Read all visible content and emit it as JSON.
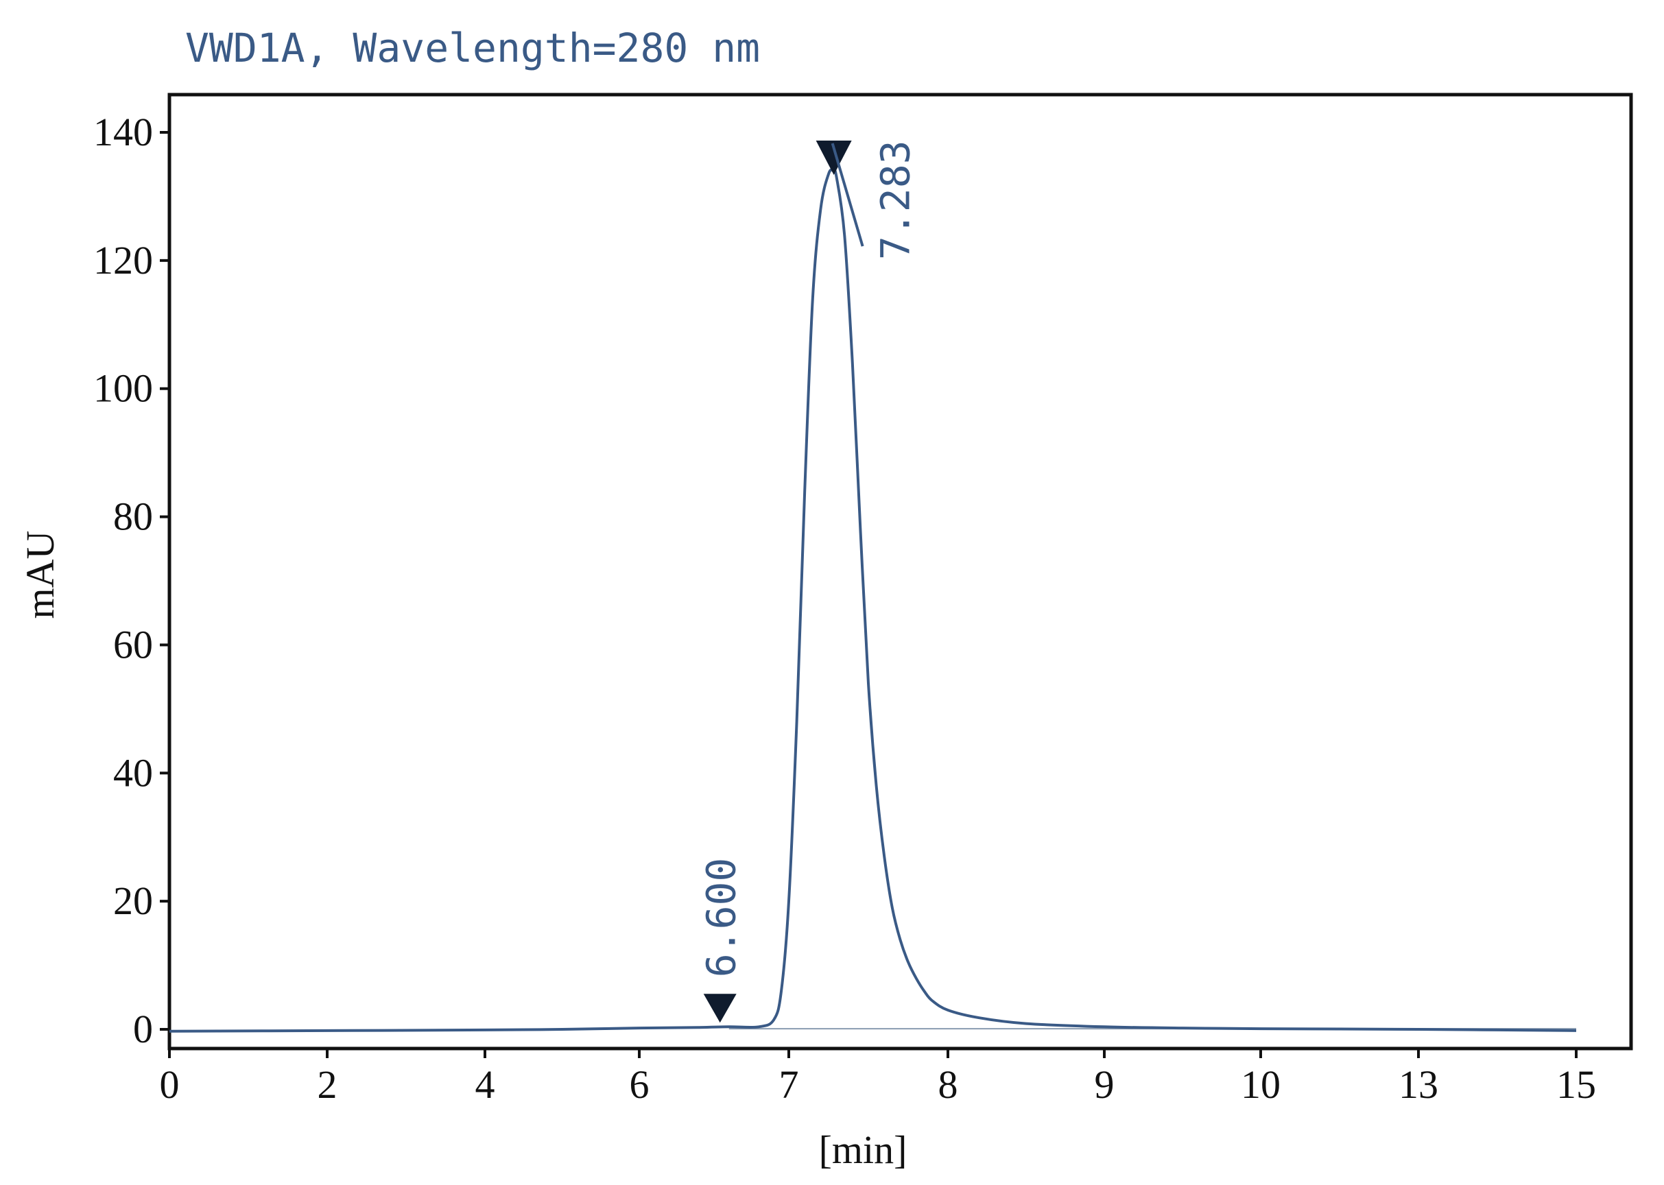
{
  "chart_data": {
    "type": "line",
    "title": "VWD1A, Wavelength=280 nm",
    "xlabel": "[min]",
    "ylabel": "mAU",
    "x_ticks": [
      "0",
      "2",
      "4",
      "6",
      "7",
      "8",
      "9",
      "10",
      "13",
      "15"
    ],
    "y_ticks": [
      0,
      20,
      40,
      60,
      80,
      100,
      120,
      140
    ],
    "ylim": [
      -3,
      146
    ],
    "grid": false,
    "line_color": "#3a5a86",
    "series": [
      {
        "x": [
          0,
          2,
          4,
          5,
          6,
          6.4,
          6.6,
          6.8,
          6.9,
          6.95,
          7.0,
          7.05,
          7.1,
          7.15,
          7.2,
          7.25,
          7.28,
          7.3,
          7.35,
          7.4,
          7.45,
          7.5,
          7.55,
          7.6,
          7.65,
          7.7,
          7.75,
          7.8,
          7.85,
          7.9,
          8.0,
          8.2,
          8.5,
          9.0,
          9.5,
          10,
          13,
          14,
          15
        ],
        "values": [
          -0.3,
          -0.2,
          -0.1,
          0.0,
          0.2,
          0.3,
          0.4,
          0.4,
          1.5,
          6,
          20,
          48,
          84,
          114,
          128,
          133.5,
          134,
          133,
          124,
          104,
          78,
          54,
          38,
          27,
          19,
          14,
          10.5,
          8,
          6,
          4.5,
          3.0,
          1.8,
          0.9,
          0.4,
          0.2,
          0.1,
          0.0,
          -0.1,
          -0.2
        ]
      }
    ],
    "peaks": [
      {
        "label": "6.600",
        "x": 6.6,
        "y": 0.4
      },
      {
        "label": "7.283",
        "x": 7.283,
        "y": 134
      }
    ]
  }
}
